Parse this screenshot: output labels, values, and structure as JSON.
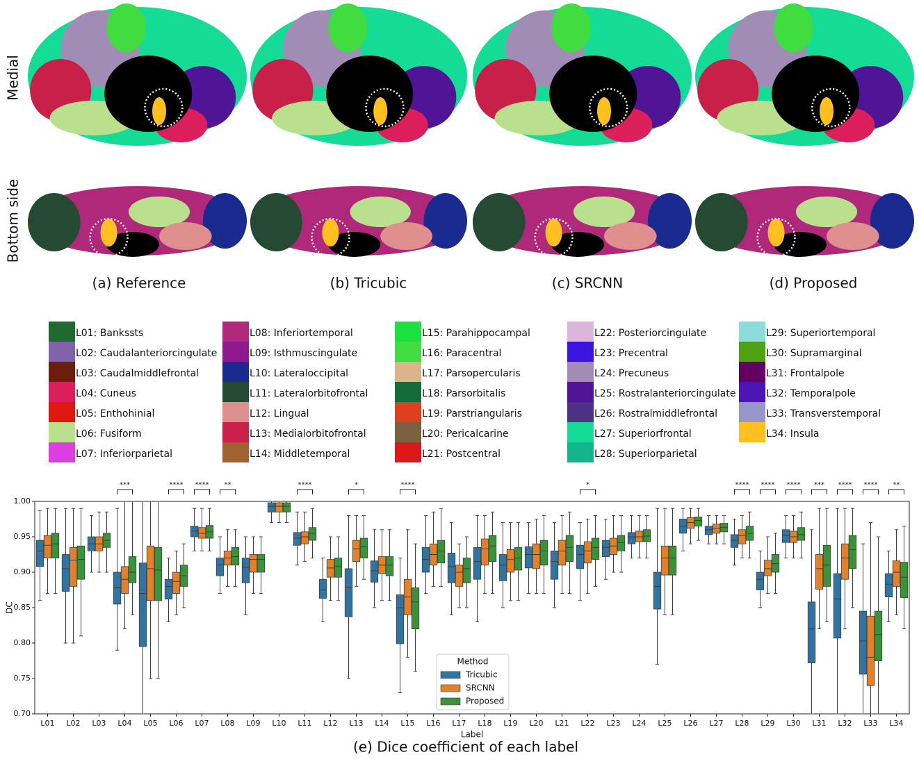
{
  "figure": {
    "row_labels": [
      "Medial",
      "Bottom side"
    ],
    "panel_captions": [
      "(a) Reference",
      "(b) Tricubic",
      "(c) SRCNN",
      "(d) Proposed"
    ],
    "legend": [
      {
        "label": "L01: Bankssts",
        "color": "#1f6b2f"
      },
      {
        "label": "L02: Caudalanteriorcingulate",
        "color": "#7f62a8"
      },
      {
        "label": "L03: Caudalmiddlefrontal",
        "color": "#6b1e0e"
      },
      {
        "label": "L04: Cuneus",
        "color": "#dc1f5c"
      },
      {
        "label": "L05: Enthohinial",
        "color": "#e0190f"
      },
      {
        "label": "L06: Fusiform",
        "color": "#b9e08c"
      },
      {
        "label": "L07: Inferiorparietal",
        "color": "#dd3ee0"
      },
      {
        "label": "L08: Inferiortemporal",
        "color": "#b0287a"
      },
      {
        "label": "L09: Isthmuscingulate",
        "color": "#8e1a8e"
      },
      {
        "label": "L10: Lateraloccipital",
        "color": "#1a2a8f"
      },
      {
        "label": "L11: Lateralorbitofrontal",
        "color": "#244a33"
      },
      {
        "label": "L12: Lingual",
        "color": "#e08f8f"
      },
      {
        "label": "L13: Medialorbitofrontal",
        "color": "#c82048"
      },
      {
        "label": "L14: Middletemporal",
        "color": "#a0622e"
      },
      {
        "label": "L15: Parahippocampal",
        "color": "#1ae040"
      },
      {
        "label": "L16: Paracentral",
        "color": "#40dc40"
      },
      {
        "label": "L17: Parsopercularis",
        "color": "#dcb48c"
      },
      {
        "label": "L18: Parsorbitalis",
        "color": "#146b3a"
      },
      {
        "label": "L19: Parstriangularis",
        "color": "#dc4020"
      },
      {
        "label": "L20: Pericalcarine",
        "color": "#7a6040"
      },
      {
        "label": "L21: Postcentral",
        "color": "#dc1818"
      },
      {
        "label": "L22: Posteriorcingulate",
        "color": "#dcb4dc"
      },
      {
        "label": "L23: Precentral",
        "color": "#3c14dc"
      },
      {
        "label": "L24: Precuneus",
        "color": "#a08cb4"
      },
      {
        "label": "L25: Rostralanteriorcingulate",
        "color": "#501496"
      },
      {
        "label": "L26: Rostralmiddlefrontal",
        "color": "#4b3282"
      },
      {
        "label": "L27: Superiorfrontal",
        "color": "#14dc96"
      },
      {
        "label": "L28: Superiorparietal",
        "color": "#14b48c"
      },
      {
        "label": "L29: Superiortemporal",
        "color": "#8cdcdc"
      },
      {
        "label": "L30: Supramarginal",
        "color": "#50a014"
      },
      {
        "label": "L31: Frontalpole",
        "color": "#640064"
      },
      {
        "label": "L32: Temporalpole",
        "color": "#4b14b4"
      },
      {
        "label": "L33: Transverstemporal",
        "color": "#9696c8"
      },
      {
        "label": "L34: Insula",
        "color": "#ffc020"
      }
    ]
  },
  "chart_data": {
    "type": "box",
    "caption": "(e) Dice coefficient of each label",
    "x_label": "Label",
    "y_label": "DC",
    "categories": [
      "L01",
      "L02",
      "L03",
      "L04",
      "L05",
      "L06",
      "L07",
      "L08",
      "L09",
      "L10",
      "L11",
      "L12",
      "L13",
      "L14",
      "L15",
      "L16",
      "L17",
      "L18",
      "L19",
      "L20",
      "L21",
      "L22",
      "L23",
      "L24",
      "L25",
      "L26",
      "L27",
      "L28",
      "L29",
      "L30",
      "L31",
      "L32",
      "L33",
      "L34"
    ],
    "significance": [
      null,
      null,
      null,
      "***",
      null,
      "****",
      "****",
      "**",
      null,
      null,
      "****",
      null,
      "*",
      null,
      "****",
      null,
      null,
      null,
      null,
      null,
      null,
      "*",
      null,
      null,
      null,
      null,
      null,
      "****",
      "****",
      "****",
      "***",
      "****",
      "****",
      "**"
    ],
    "ylim": [
      0.7,
      1.0
    ],
    "yticks": [
      {
        "value": 0.7,
        "label": "0.70"
      },
      0.75,
      {
        "value": 0.8,
        "label": "0.80"
      },
      0.85,
      {
        "value": 0.9,
        "label": "0.90"
      },
      0.95,
      {
        "value": 1.0,
        "label": "1.00"
      }
    ],
    "legend_title": "Method",
    "legend_position": "lower center",
    "series": [
      {
        "name": "Tricubic",
        "color": "#3274a1",
        "values": [
          [
            0.86,
            0.908,
            0.93,
            0.945,
            0.987
          ],
          [
            0.8,
            0.873,
            0.905,
            0.925,
            0.99
          ],
          [
            0.9,
            0.93,
            0.94,
            0.95,
            0.98
          ],
          [
            0.79,
            0.855,
            0.878,
            0.9,
            0.99
          ],
          [
            0.7,
            0.795,
            0.87,
            0.913,
            1.0
          ],
          [
            0.83,
            0.862,
            0.88,
            0.89,
            0.92
          ],
          [
            0.93,
            0.95,
            0.958,
            0.965,
            0.99
          ],
          [
            0.87,
            0.895,
            0.91,
            0.92,
            0.95
          ],
          [
            0.84,
            0.885,
            0.907,
            0.92,
            0.95
          ],
          [
            0.97,
            0.985,
            0.993,
            0.998,
            1.0
          ],
          [
            0.91,
            0.938,
            0.948,
            0.956,
            0.985
          ],
          [
            0.83,
            0.863,
            0.875,
            0.89,
            0.92
          ],
          [
            0.75,
            0.837,
            0.878,
            0.905,
            0.98
          ],
          [
            0.85,
            0.886,
            0.902,
            0.916,
            0.96
          ],
          [
            0.73,
            0.799,
            0.85,
            0.868,
            0.92
          ],
          [
            0.87,
            0.9,
            0.918,
            0.935,
            0.98
          ],
          [
            0.84,
            0.885,
            0.908,
            0.927,
            0.97
          ],
          [
            0.83,
            0.89,
            0.915,
            0.935,
            0.98
          ],
          [
            0.85,
            0.888,
            0.91,
            0.925,
            0.97
          ],
          [
            0.87,
            0.906,
            0.925,
            0.936,
            0.97
          ],
          [
            0.85,
            0.89,
            0.915,
            0.93,
            0.97
          ],
          [
            0.86,
            0.905,
            0.925,
            0.938,
            0.97
          ],
          [
            0.89,
            0.922,
            0.935,
            0.945,
            0.975
          ],
          [
            0.92,
            0.94,
            0.95,
            0.956,
            0.98
          ],
          [
            0.77,
            0.848,
            0.88,
            0.9,
            0.99
          ],
          [
            0.93,
            0.955,
            0.965,
            0.975,
            0.99
          ],
          [
            0.94,
            0.953,
            0.96,
            0.965,
            0.98
          ],
          [
            0.91,
            0.935,
            0.945,
            0.953,
            0.975
          ],
          [
            0.85,
            0.875,
            0.89,
            0.9,
            0.93
          ],
          [
            0.92,
            0.942,
            0.952,
            0.96,
            0.98
          ],
          [
            0.7,
            0.772,
            0.82,
            0.858,
            0.96
          ],
          [
            0.7,
            0.807,
            0.862,
            0.898,
            0.99
          ],
          [
            0.7,
            0.756,
            0.803,
            0.845,
            0.94
          ],
          [
            0.83,
            0.865,
            0.883,
            0.898,
            0.93
          ]
        ]
      },
      {
        "name": "SRCNN",
        "color": "#e1812c",
        "values": [
          [
            0.87,
            0.92,
            0.938,
            0.952,
            0.99
          ],
          [
            0.8,
            0.88,
            0.917,
            0.935,
            0.99
          ],
          [
            0.9,
            0.93,
            0.94,
            0.95,
            0.985
          ],
          [
            0.82,
            0.87,
            0.89,
            0.908,
            1.0
          ],
          [
            0.75,
            0.86,
            0.905,
            0.937,
            1.0
          ],
          [
            0.84,
            0.87,
            0.887,
            0.9,
            0.93
          ],
          [
            0.93,
            0.948,
            0.955,
            0.963,
            0.99
          ],
          [
            0.88,
            0.91,
            0.92,
            0.93,
            0.96
          ],
          [
            0.87,
            0.9,
            0.918,
            0.925,
            0.95
          ],
          [
            0.97,
            0.985,
            0.993,
            0.998,
            1.0
          ],
          [
            0.915,
            0.94,
            0.95,
            0.957,
            0.985
          ],
          [
            0.86,
            0.893,
            0.906,
            0.918,
            0.95
          ],
          [
            0.88,
            0.915,
            0.933,
            0.945,
            0.98
          ],
          [
            0.86,
            0.898,
            0.91,
            0.922,
            0.96
          ],
          [
            0.78,
            0.84,
            0.865,
            0.89,
            0.96
          ],
          [
            0.88,
            0.91,
            0.925,
            0.94,
            0.985
          ],
          [
            0.85,
            0.88,
            0.9,
            0.91,
            0.94
          ],
          [
            0.87,
            0.91,
            0.933,
            0.947,
            0.98
          ],
          [
            0.86,
            0.9,
            0.918,
            0.932,
            0.97
          ],
          [
            0.87,
            0.905,
            0.925,
            0.94,
            0.975
          ],
          [
            0.87,
            0.91,
            0.93,
            0.945,
            0.98
          ],
          [
            0.87,
            0.913,
            0.93,
            0.943,
            0.975
          ],
          [
            0.9,
            0.925,
            0.937,
            0.948,
            0.98
          ],
          [
            0.92,
            0.943,
            0.95,
            0.958,
            0.98
          ],
          [
            0.84,
            0.896,
            0.92,
            0.937,
            0.99
          ],
          [
            0.94,
            0.962,
            0.97,
            0.977,
            0.99
          ],
          [
            0.94,
            0.955,
            0.962,
            0.968,
            0.98
          ],
          [
            0.92,
            0.94,
            0.952,
            0.96,
            0.98
          ],
          [
            0.87,
            0.895,
            0.905,
            0.917,
            0.95
          ],
          [
            0.92,
            0.942,
            0.95,
            0.958,
            0.98
          ],
          [
            0.82,
            0.876,
            0.905,
            0.925,
            0.99
          ],
          [
            0.82,
            0.89,
            0.92,
            0.94,
            0.99
          ],
          [
            0.7,
            0.74,
            0.78,
            0.838,
            0.97
          ],
          [
            0.84,
            0.88,
            0.9,
            0.916,
            0.96
          ]
        ]
      },
      {
        "name": "Proposed",
        "color": "#3a923a",
        "values": [
          [
            0.87,
            0.92,
            0.94,
            0.955,
            0.99
          ],
          [
            0.81,
            0.89,
            0.918,
            0.937,
            0.99
          ],
          [
            0.9,
            0.935,
            0.945,
            0.955,
            0.985
          ],
          [
            0.84,
            0.885,
            0.9,
            0.922,
            1.0
          ],
          [
            0.75,
            0.86,
            0.903,
            0.935,
            1.0
          ],
          [
            0.85,
            0.88,
            0.895,
            0.91,
            0.94
          ],
          [
            0.93,
            0.948,
            0.957,
            0.966,
            0.99
          ],
          [
            0.88,
            0.91,
            0.922,
            0.935,
            0.96
          ],
          [
            0.87,
            0.9,
            0.918,
            0.925,
            0.95
          ],
          [
            0.97,
            0.985,
            0.993,
            0.998,
            1.0
          ],
          [
            0.92,
            0.945,
            0.955,
            0.963,
            0.99
          ],
          [
            0.86,
            0.893,
            0.908,
            0.92,
            0.95
          ],
          [
            0.89,
            0.92,
            0.936,
            0.948,
            0.98
          ],
          [
            0.86,
            0.895,
            0.91,
            0.922,
            0.96
          ],
          [
            0.76,
            0.82,
            0.858,
            0.878,
            0.94
          ],
          [
            0.88,
            0.913,
            0.93,
            0.945,
            0.99
          ],
          [
            0.85,
            0.885,
            0.905,
            0.92,
            0.95
          ],
          [
            0.87,
            0.915,
            0.937,
            0.952,
            0.985
          ],
          [
            0.86,
            0.903,
            0.92,
            0.935,
            0.97
          ],
          [
            0.87,
            0.91,
            0.93,
            0.945,
            0.98
          ],
          [
            0.87,
            0.915,
            0.935,
            0.952,
            0.985
          ],
          [
            0.88,
            0.918,
            0.935,
            0.948,
            0.98
          ],
          [
            0.9,
            0.93,
            0.942,
            0.952,
            0.98
          ],
          [
            0.92,
            0.943,
            0.951,
            0.96,
            0.98
          ],
          [
            0.84,
            0.896,
            0.92,
            0.937,
            0.99
          ],
          [
            0.945,
            0.965,
            0.973,
            0.978,
            0.99
          ],
          [
            0.94,
            0.957,
            0.963,
            0.969,
            0.98
          ],
          [
            0.92,
            0.945,
            0.955,
            0.965,
            0.985
          ],
          [
            0.87,
            0.9,
            0.912,
            0.925,
            0.955
          ],
          [
            0.92,
            0.945,
            0.953,
            0.963,
            0.985
          ],
          [
            0.83,
            0.88,
            0.91,
            0.938,
            0.99
          ],
          [
            0.85,
            0.905,
            0.932,
            0.952,
            0.99
          ],
          [
            0.7,
            0.775,
            0.812,
            0.845,
            0.95
          ],
          [
            0.82,
            0.864,
            0.893,
            0.914,
            0.965
          ]
        ]
      }
    ]
  }
}
